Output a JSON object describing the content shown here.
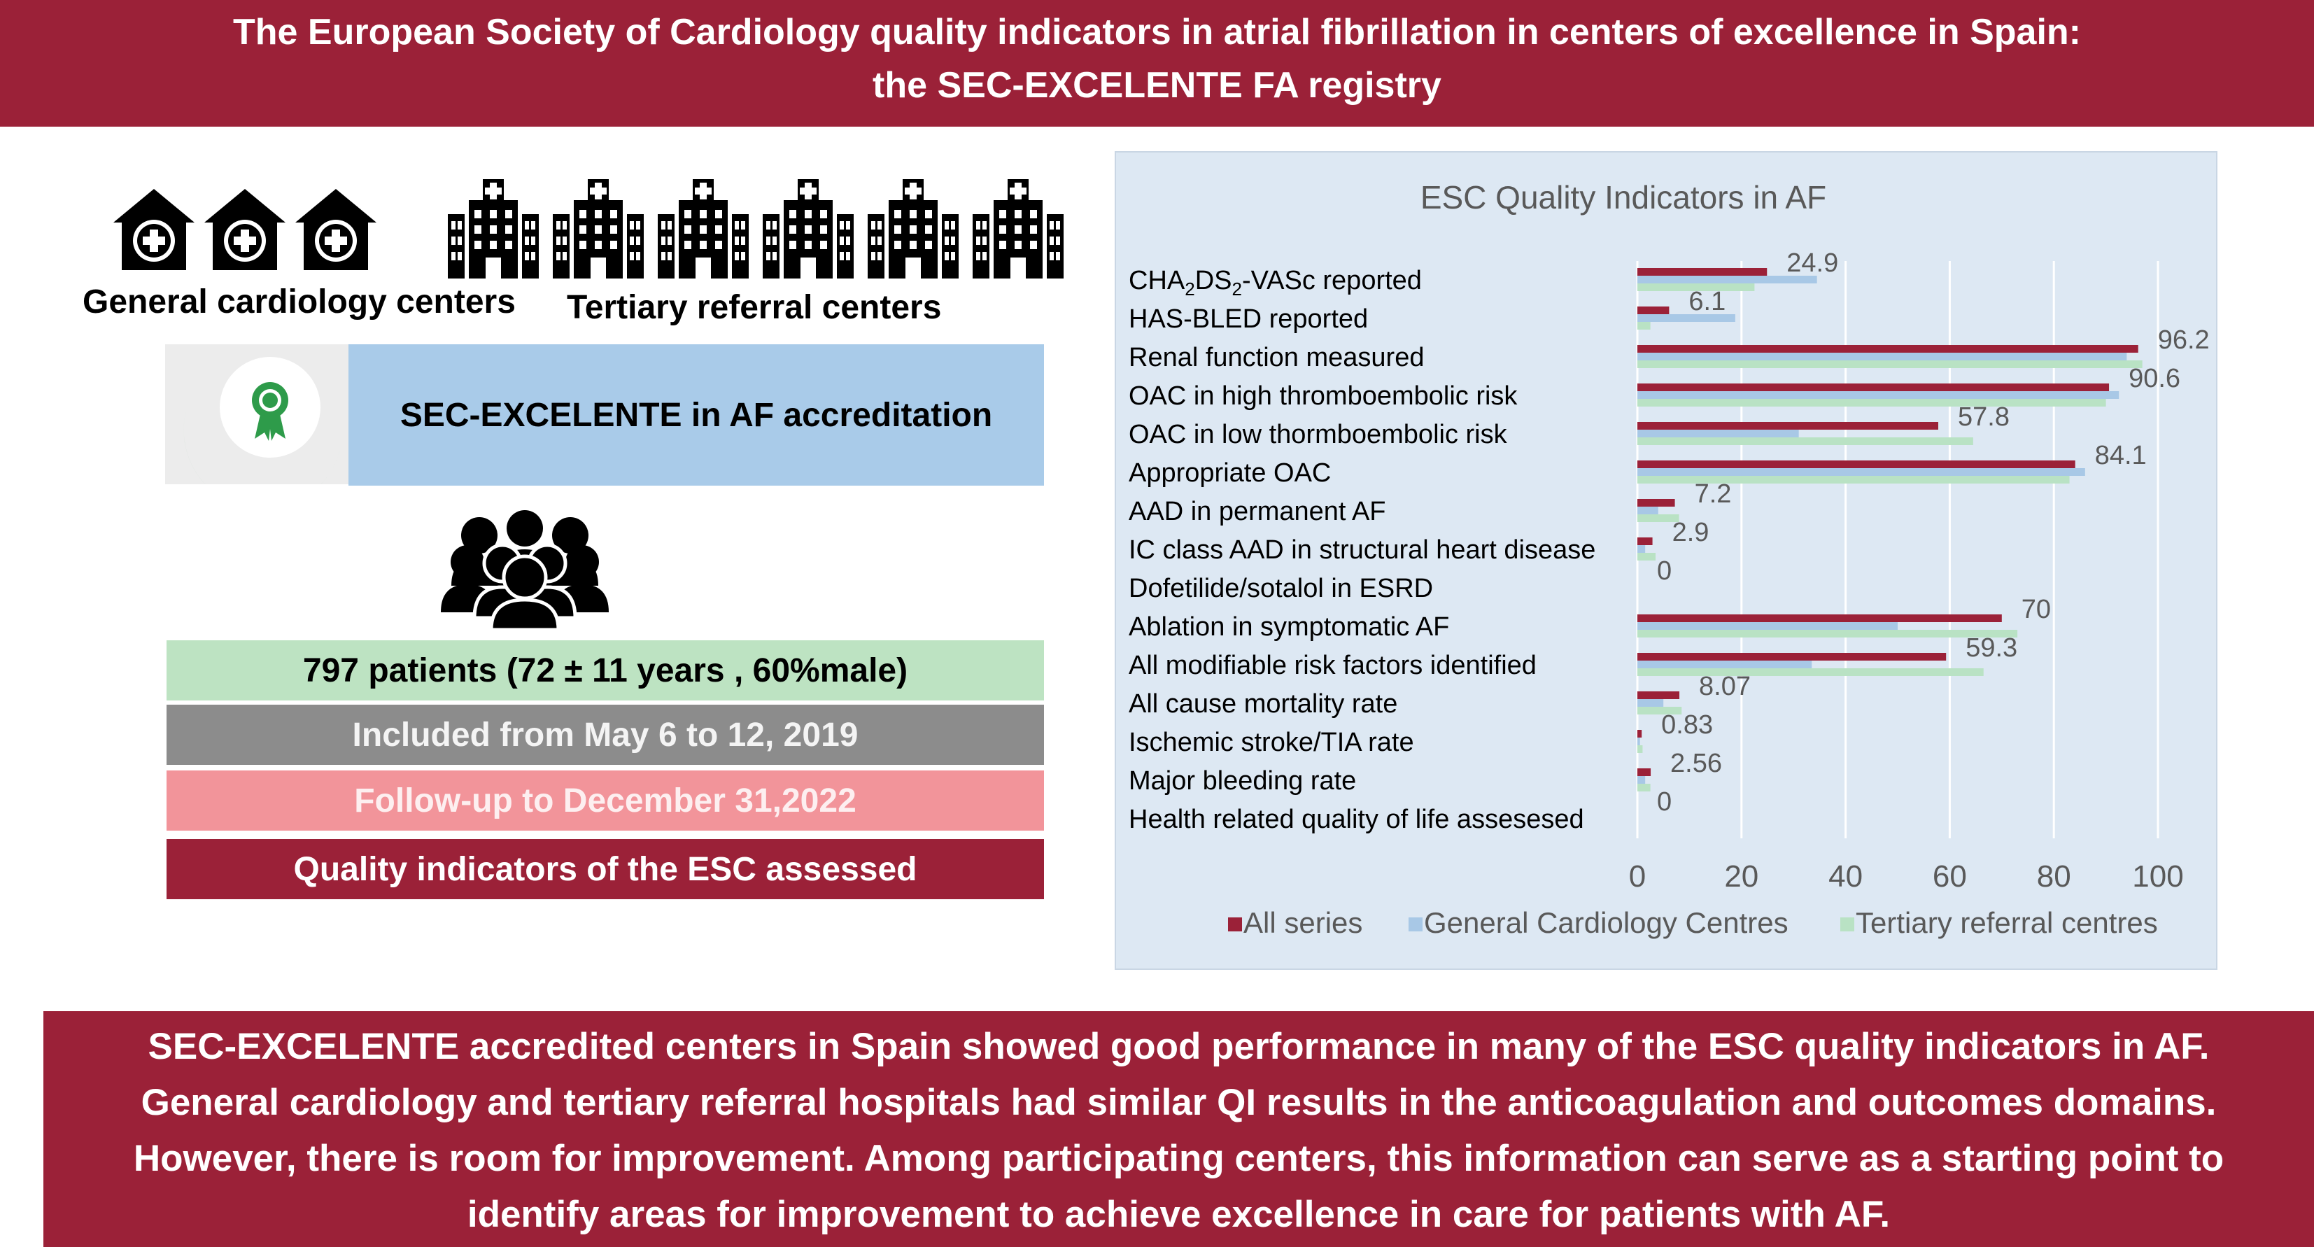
{
  "title": {
    "line1": "The European Society of Cardiology quality indicators in atrial fibrillation in centers of excellence in Spain:",
    "line2": "the SEC-EXCELENTE FA registry"
  },
  "left": {
    "general_label": "General cardiology centers",
    "tertiary_label": "Tertiary referral centers",
    "accreditation_label": "SEC-EXCELENTE in AF accreditation",
    "patients_label": "797 patients (72 ± 11 years , 60%male)",
    "included_label": "Included from May 6 to 12, 2019",
    "followup_label": "Follow-up to December 31,2022",
    "qi_label": "Quality indicators of the ESC assessed"
  },
  "conclusion": {
    "line1": "SEC-EXCELENTE  accredited centers in Spain showed good performance in many of the ESC quality indicators in AF.",
    "line2": "General cardiology and tertiary referral hospitals had similar QI results in the anticoagulation and outcomes domains.",
    "line3": "However, there is room for improvement. Among participating centers, this information can serve as a starting point to",
    "line4": "identify areas for improvement to achieve excellence in care for patients with AF."
  },
  "colors": {
    "banner": "#9b2138",
    "all_series": "#9b2138",
    "general": "#a8c8e6",
    "tertiary": "#b9e2c4",
    "patients_box": "#bde3c2",
    "included_box": "#8c8c8c",
    "followup_box": "#f2949a",
    "accreditation_box": "#a9cbe9"
  },
  "chart_data": {
    "type": "bar",
    "orientation": "horizontal",
    "title": "ESC Quality Indicators in AF",
    "categories": [
      "CHA2DS2-VASc reported",
      "HAS-BLED reported",
      "Renal function measured",
      "OAC in high thromboembolic risk",
      "OAC in low thormboembolic risk",
      " Appropriate OAC",
      "AAD in permanent AF",
      "IC class AAD in structural heart disease",
      "Dofetilide/sotalol in ESRD",
      " Ablation in symptomatic AF",
      "All modifiable risk factors identified",
      "All cause mortality rate",
      "Ischemic stroke/TIA rate",
      "Major bleeding rate",
      "Health related quality of life assesesed"
    ],
    "series": [
      {
        "name": "All series",
        "values": [
          24.9,
          6.1,
          96.2,
          90.6,
          57.8,
          84.1,
          7.2,
          2.9,
          0,
          70,
          59.3,
          8.07,
          0.83,
          2.56,
          0
        ]
      },
      {
        "name": "General Cardiology Centres",
        "values": [
          34.5,
          18.8,
          94,
          92.5,
          31,
          86,
          4,
          1.5,
          0,
          50,
          33.5,
          5,
          0.5,
          1.5,
          0
        ]
      },
      {
        "name": "Tertiary referral centres",
        "values": [
          22.5,
          2.5,
          97,
          90,
          64.5,
          83,
          8,
          3.5,
          0,
          73,
          66.5,
          8.5,
          1,
          2.5,
          0
        ]
      }
    ],
    "data_labels": [
      "24.9",
      "6.1",
      "96.2",
      "90.6",
      "57.8",
      "84.1",
      "7.2",
      "2.9",
      "0",
      "70",
      "59.3",
      "8.07",
      "0.83",
      "2.56",
      "0"
    ],
    "xlim": [
      0,
      100
    ],
    "xticks": [
      0,
      20,
      40,
      60,
      80,
      100
    ],
    "legend_position": "bottom",
    "grid": "vertical"
  }
}
